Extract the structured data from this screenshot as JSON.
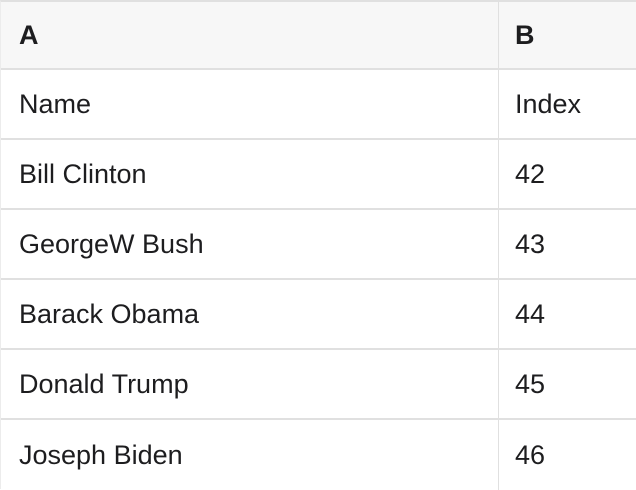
{
  "table": {
    "header": {
      "col_a": "A",
      "col_b": "B"
    },
    "rows": [
      {
        "a": "Name",
        "b": "Index"
      },
      {
        "a": "Bill Clinton",
        "b": "42"
      },
      {
        "a": "GeorgeW Bush",
        "b": "43"
      },
      {
        "a": "Barack Obama",
        "b": "44"
      },
      {
        "a": "Donald Trump",
        "b": "45"
      },
      {
        "a": "Joseph Biden",
        "b": "46"
      }
    ]
  },
  "colors": {
    "header_bg": "#f7f7f7",
    "row_bg": "#ffffff",
    "border": "#e0e0e0",
    "border_light": "#ececec",
    "text": "#1d1d1f"
  }
}
